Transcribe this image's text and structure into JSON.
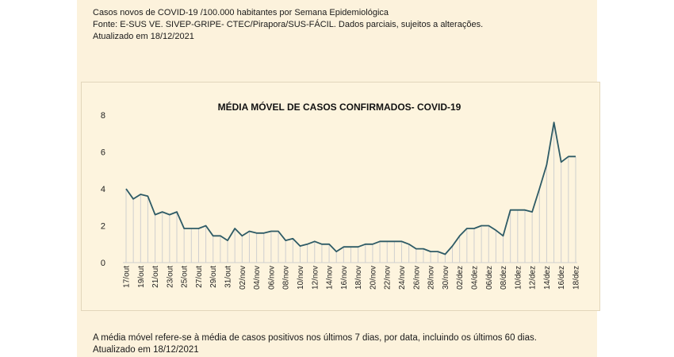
{
  "header": {
    "line1": "Casos novos de COVID-19 /100.000 habitantes por Semana Epidemiológica",
    "line2": "Fonte: E-SUS VE. SIVEP-GRIPE- CTEC/Pirapora/SUS-FÁCIL. Dados parciais, sujeitos a alterações.",
    "line3": "Atualizado em  18/12/2021"
  },
  "footer": {
    "line1": "A média móvel refere-se à média de casos positivos nos últimos 7 dias, por data, incluindo os últimos 60 dias.",
    "line2": "Atualizado em 18/12/2021"
  },
  "colors": {
    "line": "#2e5b66",
    "drop": "#cfcfcf",
    "axis": "#cfcfcf",
    "title": "#111111"
  },
  "chart_data": {
    "type": "line",
    "title": "MÉDIA MÓVEL DE CASOS CONFIRMADOS-  COVID-19",
    "xlabel": "",
    "ylabel": "",
    "ylim": [
      0,
      8
    ],
    "yticks": [
      "0",
      "2",
      "4",
      "6",
      "8"
    ],
    "grid": false,
    "drop_lines": true,
    "x_tick_labels": [
      "17/out",
      "19/out",
      "21/out",
      "23/out",
      "25/out",
      "27/out",
      "29/out",
      "31/out",
      "02/nov",
      "04/nov",
      "06/nov",
      "08/nov",
      "10/nov",
      "12/nov",
      "14/nov",
      "16/nov",
      "18/nov",
      "20/nov",
      "22/nov",
      "24/nov",
      "26/nov",
      "28/nov",
      "30/nov",
      "02/dez",
      "04/dez",
      "06/dez",
      "08/dez",
      "10/dez",
      "12/dez",
      "14/dez",
      "16/dez",
      "18/dez"
    ],
    "x": [
      "17/out",
      "18/out",
      "19/out",
      "20/out",
      "21/out",
      "22/out",
      "23/out",
      "24/out",
      "25/out",
      "26/out",
      "27/out",
      "28/out",
      "29/out",
      "30/out",
      "31/out",
      "01/nov",
      "02/nov",
      "03/nov",
      "04/nov",
      "05/nov",
      "06/nov",
      "07/nov",
      "08/nov",
      "09/nov",
      "10/nov",
      "11/nov",
      "12/nov",
      "13/nov",
      "14/nov",
      "15/nov",
      "16/nov",
      "17/nov",
      "18/nov",
      "19/nov",
      "20/nov",
      "21/nov",
      "22/nov",
      "23/nov",
      "24/nov",
      "25/nov",
      "26/nov",
      "27/nov",
      "28/nov",
      "29/nov",
      "30/nov",
      "01/dez",
      "02/dez",
      "03/dez",
      "04/dez",
      "05/dez",
      "06/dez",
      "07/dez",
      "08/dez",
      "09/dez",
      "10/dez",
      "11/dez",
      "12/dez",
      "13/dez",
      "14/dez",
      "15/dez",
      "16/dez",
      "17/dez",
      "18/dez"
    ],
    "values": [
      4.0,
      3.45,
      3.7,
      3.6,
      2.6,
      2.75,
      2.6,
      2.75,
      1.85,
      1.85,
      1.85,
      2.0,
      1.45,
      1.45,
      1.2,
      1.85,
      1.45,
      1.7,
      1.6,
      1.6,
      1.7,
      1.7,
      1.2,
      1.3,
      0.9,
      1.0,
      1.15,
      1.0,
      1.0,
      0.6,
      0.85,
      0.85,
      0.85,
      1.0,
      1.0,
      1.15,
      1.15,
      1.15,
      1.15,
      1.0,
      0.75,
      0.75,
      0.6,
      0.6,
      0.45,
      0.9,
      1.45,
      1.85,
      1.85,
      2.0,
      2.0,
      1.75,
      1.45,
      2.85,
      2.85,
      2.85,
      2.75,
      4.0,
      5.3,
      7.6,
      5.45,
      5.75,
      5.75
    ]
  }
}
